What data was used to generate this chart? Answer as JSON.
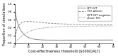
{
  "title": "",
  "xlabel": "Cost-effectiveness threshold ($000/QALY)",
  "ylabel": "Proportion of simulations",
  "xlim": [
    0,
    70
  ],
  "ylim": [
    0,
    1.0
  ],
  "yticks": [
    0.0,
    0.2,
    0.4,
    0.6,
    0.8,
    1.0
  ],
  "xticks": [
    0,
    10,
    20,
    30,
    40,
    50,
    60,
    70
  ],
  "legend_entries": [
    "QFT-GIT",
    "TST ≥5mm",
    "QFT-GIT negative\nshare TST"
  ],
  "line_styles": [
    "-",
    "--",
    "-."
  ],
  "line_colors": [
    "#888888",
    "#888888",
    "#aaaaaa"
  ],
  "background_color": "#ffffff"
}
